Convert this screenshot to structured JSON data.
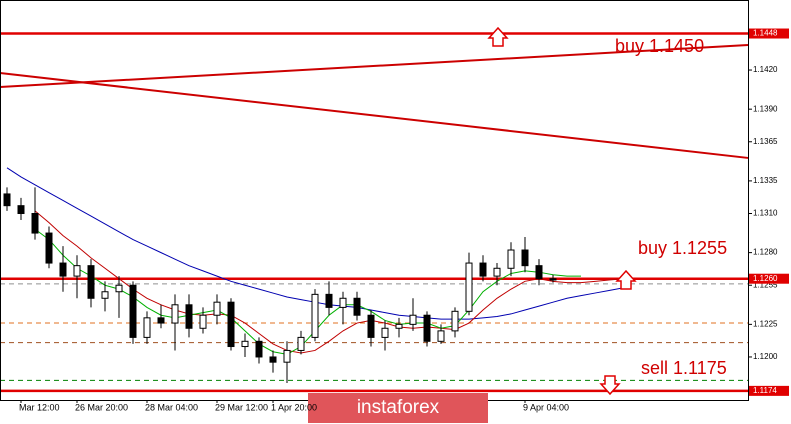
{
  "chart_data": {
    "type": "candlestick",
    "categories": [
      null,
      "Mar 12:00",
      null,
      null,
      null,
      "26 Mar 20:00",
      null,
      null,
      null,
      null,
      "28 Mar 04:00",
      null,
      null,
      null,
      null,
      "29 Mar 12:00",
      null,
      null,
      null,
      "1 Apr 20:00",
      null,
      null,
      null,
      null,
      null,
      null,
      null,
      null,
      null,
      null,
      null,
      null,
      null,
      null,
      null,
      null,
      null,
      "9 Apr 04:00",
      null,
      null,
      null,
      null,
      null,
      null,
      null
    ],
    "open": [
      1.1325,
      1.1316,
      1.131,
      1.1295,
      1.1272,
      1.1262,
      1.127,
      1.1245,
      1.125,
      1.1255,
      1.1215,
      1.123,
      1.1226,
      1.124,
      1.1222,
      1.1232,
      1.1242,
      1.1208,
      1.1212,
      1.12,
      1.1196,
      1.1205,
      1.1215,
      1.1248,
      1.1238,
      1.1245,
      1.1232,
      1.1215,
      1.1222,
      1.1225,
      1.1232,
      1.1212,
      1.122,
      1.1235,
      1.1272,
      1.1262,
      1.1268,
      1.1282,
      1.127,
      1.126,
      null,
      null,
      null,
      null,
      null
    ],
    "high": [
      1.133,
      1.1322,
      1.133,
      1.13,
      1.1285,
      1.1278,
      1.1275,
      1.1258,
      1.1262,
      1.1258,
      1.1235,
      1.124,
      1.1248,
      1.1248,
      1.1238,
      1.1248,
      1.1245,
      1.1218,
      1.1215,
      1.1205,
      1.1212,
      1.122,
      1.1252,
      1.1258,
      1.125,
      1.125,
      1.1236,
      1.1228,
      1.123,
      1.1245,
      1.1235,
      1.1225,
      1.1238,
      1.128,
      1.1278,
      1.1272,
      1.1288,
      1.1292,
      1.1275,
      1.1263,
      null,
      null,
      null,
      null,
      null
    ],
    "low": [
      1.1312,
      1.1305,
      1.129,
      1.1268,
      1.125,
      1.1245,
      1.1238,
      1.1235,
      1.123,
      1.121,
      1.121,
      1.1222,
      1.1205,
      1.1215,
      1.1218,
      1.1225,
      1.1205,
      1.12,
      1.1195,
      1.1188,
      1.118,
      1.1202,
      1.1212,
      1.1232,
      1.1225,
      1.1228,
      1.1208,
      1.1205,
      1.1215,
      1.122,
      1.1208,
      1.121,
      1.1215,
      1.1232,
      1.1258,
      1.1255,
      1.1262,
      1.1265,
      1.1255,
      1.1257,
      null,
      null,
      null,
      null,
      null
    ],
    "close": [
      1.1316,
      1.131,
      1.1295,
      1.1272,
      1.1262,
      1.127,
      1.1245,
      1.125,
      1.1255,
      1.1215,
      1.123,
      1.1226,
      1.124,
      1.1222,
      1.1232,
      1.1242,
      1.1208,
      1.1212,
      1.12,
      1.1196,
      1.1205,
      1.1215,
      1.1248,
      1.1238,
      1.1245,
      1.1232,
      1.1215,
      1.1222,
      1.1225,
      1.1232,
      1.1212,
      1.122,
      1.1235,
      1.1272,
      1.1262,
      1.1268,
      1.1282,
      1.127,
      1.126,
      1.1259,
      null,
      null,
      null,
      null,
      null
    ],
    "series": [
      {
        "color": "#0000b0",
        "values": [
          1.1345,
          1.1338,
          1.1332,
          1.1326,
          1.132,
          1.1314,
          1.1308,
          1.1302,
          1.1296,
          1.129,
          1.1285,
          1.128,
          1.1275,
          1.127,
          1.1266,
          1.1262,
          1.1258,
          1.1255,
          1.1252,
          1.1249,
          1.1246,
          1.1244,
          1.1242,
          1.124,
          1.1239,
          1.1238,
          1.1236,
          1.1234,
          1.1232,
          1.1231,
          1.123,
          1.1229,
          1.1229,
          1.1229,
          1.123,
          1.1231,
          1.1233,
          1.1236,
          1.1239,
          1.1242,
          1.1245,
          1.1247,
          1.1249,
          1.1251,
          1.1253
        ]
      },
      {
        "color": "#c00000",
        "values": [
          null,
          null,
          1.1312,
          1.1303,
          1.1293,
          1.1285,
          1.1276,
          1.1268,
          1.126,
          1.1252,
          1.1245,
          1.124,
          1.1236,
          1.1233,
          1.1232,
          1.1233,
          1.1232,
          1.1226,
          1.1218,
          1.121,
          1.1205,
          1.1203,
          1.1205,
          1.1212,
          1.122,
          1.1226,
          1.1228,
          1.1226,
          1.1223,
          1.1222,
          1.1223,
          1.1222,
          1.1221,
          1.1226,
          1.1236,
          1.1245,
          1.1252,
          1.1258,
          1.126,
          1.1258,
          1.1257,
          1.1257,
          1.1258,
          1.1259,
          1.126
        ]
      },
      {
        "color": "#00b000",
        "values": [
          null,
          null,
          1.1298,
          1.129,
          1.1278,
          1.1268,
          1.1262,
          1.1255,
          1.1252,
          1.1246,
          1.1238,
          1.1232,
          1.123,
          1.1232,
          1.1234,
          1.1236,
          1.123,
          1.122,
          1.121,
          1.1204,
          1.1202,
          1.1208,
          1.122,
          1.1232,
          1.124,
          1.124,
          1.1235,
          1.1228,
          1.1225,
          1.1226,
          1.1226,
          1.1222,
          1.1224,
          1.1236,
          1.125,
          1.1258,
          1.1264,
          1.1266,
          1.1265,
          1.1263,
          1.1262,
          1.1262,
          null,
          null,
          null
        ]
      }
    ],
    "trendlines": [
      {
        "color": "#cc0000",
        "values": [
          1.1407,
          1.14392
        ]
      },
      {
        "color": "#cc0000",
        "values": [
          1.14177,
          1.13526
        ]
      }
    ],
    "levels": [
      {
        "value": 1.1448,
        "label": "1.1448",
        "color": "#e00000",
        "style": "solid"
      },
      {
        "value": 1.126,
        "label": "1.1260",
        "color": "#e00000",
        "style": "solid"
      },
      {
        "value": 1.1174,
        "label": "1.1174",
        "color": "#e00000",
        "style": "solid"
      },
      {
        "value": 1.1256,
        "color": "#909090",
        "style": "dashed"
      },
      {
        "value": 1.1226,
        "color": "#e07020",
        "style": "dashed"
      },
      {
        "value": 1.1211,
        "color": "#a05020",
        "style": "dashed"
      },
      {
        "value": 1.1182,
        "color": "#008000",
        "style": "dashed"
      }
    ],
    "annotations": [
      "buy 1.1450",
      "buy 1.1255",
      "sell 1.1175"
    ],
    "watermark": "instaforex",
    "ylim": [
      1.1167,
      1.14737
    ],
    "yticks": [
      {
        "value": 1.142,
        "label": "1.1420"
      },
      {
        "value": 1.139,
        "label": "1.1390"
      },
      {
        "value": 1.1365,
        "label": "1.1365"
      },
      {
        "value": 1.1335,
        "label": "1.1335"
      },
      {
        "value": 1.131,
        "label": "1.1310"
      },
      {
        "value": 1.128,
        "label": "1.1280"
      },
      {
        "value": 1.1255,
        "label": "1.1255"
      },
      {
        "value": 1.1225,
        "label": "1.1225"
      },
      {
        "value": 1.12,
        "label": "1.1200"
      }
    ]
  }
}
